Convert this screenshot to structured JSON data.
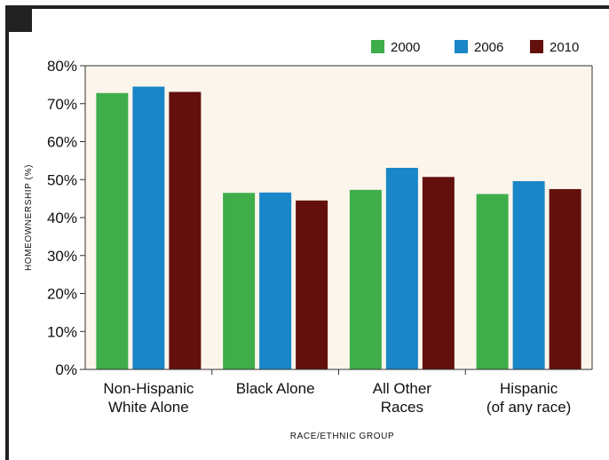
{
  "chart_data": {
    "type": "bar",
    "categories": [
      [
        "Non-Hispanic",
        "White Alone"
      ],
      [
        "Black Alone"
      ],
      [
        "All Other",
        "Races"
      ],
      [
        "Hispanic",
        "(of any race)"
      ]
    ],
    "series": [
      {
        "name": "2000",
        "color": "#3fad4a",
        "values": [
          72.8,
          46.5,
          47.3,
          46.2
        ]
      },
      {
        "name": "2006",
        "color": "#1a86c8",
        "values": [
          74.5,
          46.6,
          53.1,
          49.6
        ]
      },
      {
        "name": "2010",
        "color": "#63100c",
        "values": [
          73.1,
          44.5,
          50.7,
          47.5
        ]
      }
    ],
    "yticks": [
      "0%",
      "10%",
      "20%",
      "30%",
      "40%",
      "50%",
      "60%",
      "70%",
      "80%"
    ],
    "ylim": [
      0,
      80
    ],
    "xlabel": "RACE/ETHNIC GROUP",
    "ylabel": "HOMEOWNERSHIP (%)",
    "legend_position": "top-right",
    "plot_background": "#fbf5ec",
    "grid": false
  }
}
